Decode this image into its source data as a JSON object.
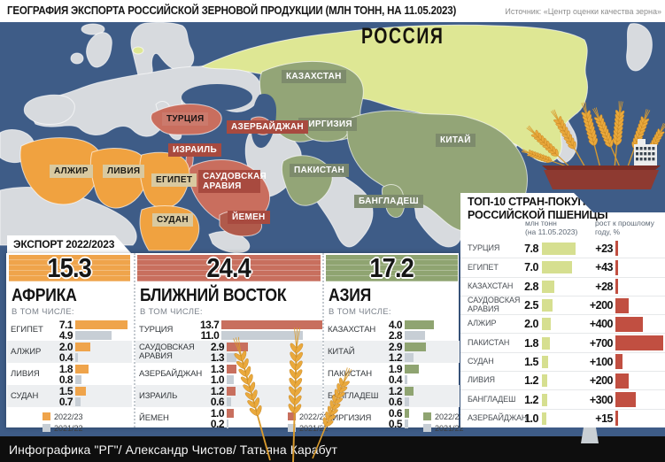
{
  "header": {
    "title": "ГЕОГРАФИЯ ЭКСПОРТА РОССИЙСКОЙ ЗЕРНОВОЙ ПРОДУКЦИИ (МЛН ТОНН, НА 11.05.2023)",
    "source": "Источник: «Центр оценки качества зерна»"
  },
  "map": {
    "labels": [
      {
        "text": "РОССИЯ"
      },
      {
        "text": "КАЗАХСТАН"
      },
      {
        "text": "КИРГИЗИЯ"
      },
      {
        "text": "КИТАЙ"
      },
      {
        "text": "ПАКИСТАН"
      },
      {
        "text": "БАНГЛАДЕШ"
      },
      {
        "text": "ТУРЦИЯ"
      },
      {
        "text": "АЗЕРБАЙДЖАН"
      },
      {
        "text": "ИЗРАИЛЬ"
      },
      {
        "text": "САУДОВСКАЯ АРАВИЯ"
      },
      {
        "text": "ЙЕМЕН"
      },
      {
        "text": "ЕГИПЕТ"
      },
      {
        "text": "АЛЖИР"
      },
      {
        "text": "ЛИВИЯ"
      },
      {
        "text": "СУДАН"
      }
    ],
    "colors": {
      "sea": "#3e5c87",
      "land": "#d7dade",
      "russia": "#dee794",
      "africa_exporters": "#f0a240",
      "mideast_exporters": "#c96e5e",
      "asia_exporters": "#93a577"
    }
  },
  "export_panel": {
    "tab": "ЭКСПОРТ 2022/2023",
    "note_label": "В ТОМ ЧИСЛЕ:",
    "legend": {
      "current": "2022/23",
      "previous": "2021/22"
    },
    "prev_color": "#c7ced5",
    "regions": [
      {
        "name": "АФРИКА",
        "total": "15.3",
        "color": "#efa44b",
        "rows": [
          {
            "country": "ЕГИПЕТ",
            "current": "7.1",
            "previous": "4.9"
          },
          {
            "country": "АЛЖИР",
            "current": "2.0",
            "previous": "0.4"
          },
          {
            "country": "ЛИВИЯ",
            "current": "1.8",
            "previous": "0.8"
          },
          {
            "country": "СУДАН",
            "current": "1.5",
            "previous": "0.7"
          }
        ]
      },
      {
        "name": "БЛИЖНИЙ ВОСТОК",
        "total": "24.4",
        "color": "#c86f5e",
        "rows": [
          {
            "country": "ТУРЦИЯ",
            "current": "13.7",
            "previous": "11.0"
          },
          {
            "country": "САУДОВСКАЯ АРАВИЯ",
            "current": "2.9",
            "previous": "1.3"
          },
          {
            "country": "АЗЕРБАЙДЖАН",
            "current": "1.3",
            "previous": "1.0"
          },
          {
            "country": "ИЗРАИЛЬ",
            "current": "1.2",
            "previous": "0.6"
          },
          {
            "country": "ЙЕМЕН",
            "current": "1.0",
            "previous": "0.2"
          }
        ]
      },
      {
        "name": "АЗИЯ",
        "total": "17.2",
        "color": "#8fa471",
        "rows": [
          {
            "country": "КАЗАХСТАН",
            "current": "4.0",
            "previous": "2.8"
          },
          {
            "country": "КИТАЙ",
            "current": "2.9",
            "previous": "1.2"
          },
          {
            "country": "ПАКИСТАН",
            "current": "1.9",
            "previous": "0.4"
          },
          {
            "country": "БАНГЛАДЕШ",
            "current": "1.2",
            "previous": "0.6"
          },
          {
            "country": "КИРГИЗИЯ",
            "current": "0.6",
            "previous": "0.5"
          }
        ]
      }
    ]
  },
  "top10": {
    "title_line1": "ТОП-10 СТРАН-ПОКУПАТЕЛЕЙ",
    "title_line2": "РОССИЙСКОЙ ПШЕНИЦЫ",
    "col1_header_line1": "млн тонн",
    "col1_header_line2": "(на 11.05.2023)",
    "col2_header_line1": "рост к прошлому",
    "col2_header_line2": "году, %",
    "tons_bar_color": "#d6df90",
    "growth_bar_color": "#c14f41",
    "rows": [
      {
        "country": "ТУРЦИЯ",
        "tons": "7.8",
        "growth": "+23"
      },
      {
        "country": "ЕГИПЕТ",
        "tons": "7.0",
        "growth": "+43"
      },
      {
        "country": "КАЗАХСТАН",
        "tons": "2.8",
        "growth": "+28"
      },
      {
        "country": "САУДОВСКАЯ АРАВИЯ",
        "tons": "2.5",
        "growth": "+200"
      },
      {
        "country": "АЛЖИР",
        "tons": "2.0",
        "growth": "+400"
      },
      {
        "country": "ПАКИСТАН",
        "tons": "1.8",
        "growth": "+700"
      },
      {
        "country": "СУДАН",
        "tons": "1.5",
        "growth": "+100"
      },
      {
        "country": "ЛИВИЯ",
        "tons": "1.2",
        "growth": "+200"
      },
      {
        "country": "БАНГЛАДЕШ",
        "tons": "1.2",
        "growth": "+300"
      },
      {
        "country": "АЗЕРБАЙДЖАН",
        "tons": "1.0",
        "growth": "+15"
      }
    ]
  },
  "footer": {
    "credit": "Инфографика \"РГ\"/ Александр Чистов/ Татьяна Карабут"
  },
  "chart_data": [
    {
      "type": "bar",
      "title": "ЭКСПОРТ 2022/2023 — АФРИКА (млн тонн)",
      "total": 15.3,
      "categories": [
        "ЕГИПЕТ",
        "АЛЖИР",
        "ЛИВИЯ",
        "СУДАН"
      ],
      "series": [
        {
          "name": "2022/23",
          "values": [
            7.1,
            2.0,
            1.8,
            1.5
          ]
        },
        {
          "name": "2021/22",
          "values": [
            4.9,
            0.4,
            0.8,
            0.7
          ]
        }
      ],
      "legend_position": "bottom",
      "grid": false
    },
    {
      "type": "bar",
      "title": "ЭКСПОРТ 2022/2023 — БЛИЖНИЙ ВОСТОК (млн тонн)",
      "total": 24.4,
      "categories": [
        "ТУРЦИЯ",
        "САУДОВСКАЯ АРАВИЯ",
        "АЗЕРБАЙДЖАН",
        "ИЗРАИЛЬ",
        "ЙЕМЕН"
      ],
      "series": [
        {
          "name": "2022/23",
          "values": [
            13.7,
            2.9,
            1.3,
            1.2,
            1.0
          ]
        },
        {
          "name": "2021/22",
          "values": [
            11.0,
            1.3,
            1.0,
            0.6,
            0.2
          ]
        }
      ],
      "legend_position": "bottom-right",
      "grid": false
    },
    {
      "type": "bar",
      "title": "ЭКСПОРТ 2022/2023 — АЗИЯ (млн тонн)",
      "total": 17.2,
      "categories": [
        "КАЗАХСТАН",
        "КИТАЙ",
        "ПАКИСТАН",
        "БАНГЛАДЕШ",
        "КИРГИЗИЯ"
      ],
      "series": [
        {
          "name": "2022/23",
          "values": [
            4.0,
            2.9,
            1.9,
            1.2,
            0.6
          ]
        },
        {
          "name": "2021/22",
          "values": [
            2.8,
            1.2,
            0.4,
            0.6,
            0.5
          ]
        }
      ],
      "legend_position": "bottom-right",
      "grid": false
    },
    {
      "type": "bar",
      "title": "ТОП-10 СТРАН-ПОКУПАТЕЛЕЙ РОССИЙСКОЙ ПШЕНИЦЫ",
      "categories": [
        "ТУРЦИЯ",
        "ЕГИПЕТ",
        "КАЗАХСТАН",
        "САУДОВСКАЯ АРАВИЯ",
        "АЛЖИР",
        "ПАКИСТАН",
        "СУДАН",
        "ЛИВИЯ",
        "БАНГЛАДЕШ",
        "АЗЕРБАЙДЖАН"
      ],
      "series": [
        {
          "name": "млн тонн (на 11.05.2023)",
          "values": [
            7.8,
            7.0,
            2.8,
            2.5,
            2.0,
            1.8,
            1.5,
            1.2,
            1.2,
            1.0
          ]
        },
        {
          "name": "рост к прошлому году, %",
          "values": [
            23,
            43,
            28,
            200,
            400,
            700,
            100,
            200,
            300,
            15
          ]
        }
      ],
      "grid": false
    }
  ]
}
